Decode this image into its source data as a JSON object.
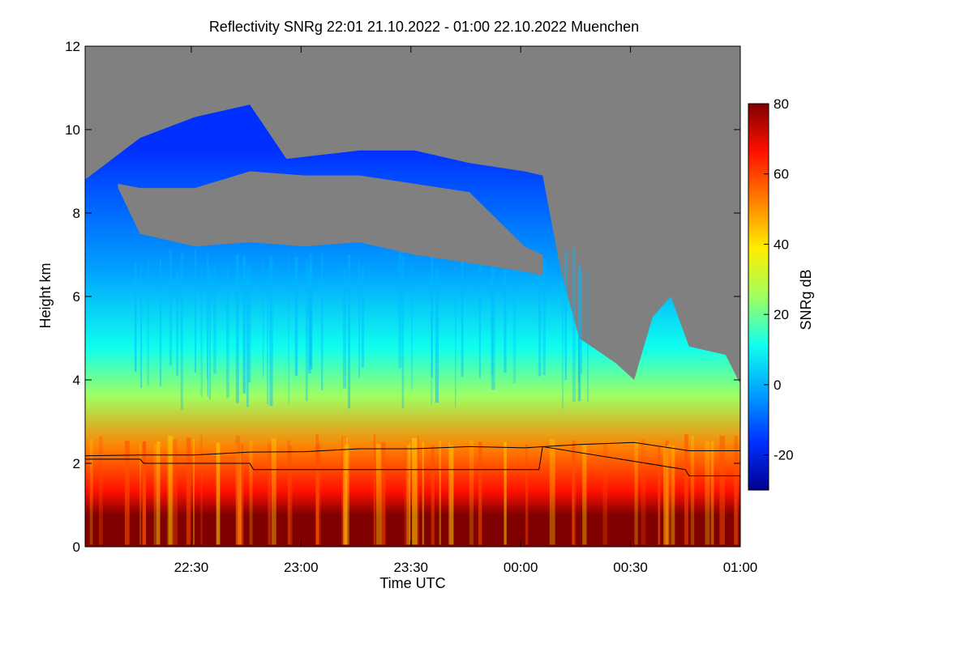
{
  "chart_data": {
    "type": "heatmap",
    "title": "Reflectivity SNRg   22:01 21.10.2022 - 01:00 22.10.2022 Muenchen",
    "xlabel": "Time UTC",
    "ylabel": "Height km",
    "xlim": [
      "22:01",
      "01:00"
    ],
    "ylim": [
      0,
      12
    ],
    "x_ticks": [
      "22:30",
      "23:00",
      "23:30",
      "00:00",
      "00:30",
      "01:00"
    ],
    "y_ticks": [
      "0",
      "2",
      "4",
      "6",
      "8",
      "10",
      "12"
    ],
    "colorbar": {
      "label": "SNRg dB",
      "range": [
        -30,
        80
      ],
      "ticks": [
        "-20",
        "0",
        "20",
        "40",
        "60",
        "80"
      ],
      "colormap": [
        "#00008f",
        "#0030ff",
        "#00a0ff",
        "#10ffee",
        "#a0ff60",
        "#ffee00",
        "#ff8000",
        "#ff1000",
        "#800000"
      ]
    },
    "no_signal_color": "#808080",
    "series": [
      {
        "x": [
          "22:01",
          "22:16",
          "22:31",
          "22:46",
          "23:01",
          "23:16",
          "23:31",
          "23:46",
          "00:01",
          "00:16",
          "00:31",
          "00:46",
          "01:00"
        ],
        "y": [
          2.18,
          2.2,
          2.2,
          2.27,
          2.28,
          2.35,
          2.35,
          2.4,
          2.37,
          2.45,
          2.5,
          2.3,
          2.3
        ]
      },
      {
        "x": [
          "22:01",
          "22:16",
          "22:17",
          "22:46",
          "22:47",
          "00:05",
          "00:06",
          "00:45",
          "00:46",
          "01:00"
        ],
        "y": [
          2.1,
          2.1,
          2.0,
          2.0,
          1.85,
          1.85,
          2.4,
          1.85,
          1.7,
          1.7
        ]
      }
    ],
    "regions": {
      "cloud_top_km": [
        [
          "22:01",
          8.8
        ],
        [
          "22:16",
          9.8
        ],
        [
          "22:31",
          10.3
        ],
        [
          "22:46",
          10.6
        ],
        [
          "22:56",
          9.3
        ],
        [
          "23:16",
          9.5
        ],
        [
          "23:31",
          9.5
        ],
        [
          "23:46",
          9.2
        ],
        [
          "00:01",
          9.0
        ],
        [
          "00:06",
          8.9
        ],
        [
          "00:11",
          6.6
        ],
        [
          "00:16",
          5.0
        ],
        [
          "00:26",
          4.4
        ],
        [
          "00:31",
          4.0
        ],
        [
          "00:36",
          5.5
        ],
        [
          "00:41",
          6.0
        ],
        [
          "00:46",
          4.8
        ],
        [
          "00:56",
          4.6
        ],
        [
          "01:00",
          3.9
        ]
      ],
      "gray_gap_km": {
        "from": "22:10",
        "to": "00:06",
        "bottom": [
          [
            "22:10",
            8.6
          ],
          [
            "22:16",
            7.5
          ],
          [
            "22:31",
            7.2
          ],
          [
            "22:46",
            7.3
          ],
          [
            "23:01",
            7.2
          ],
          [
            "23:16",
            7.3
          ],
          [
            "23:31",
            7.0
          ],
          [
            "23:46",
            6.8
          ],
          [
            "00:01",
            6.6
          ],
          [
            "00:06",
            6.5
          ]
        ],
        "top": [
          [
            "22:10",
            8.7
          ],
          [
            "22:16",
            8.6
          ],
          [
            "22:31",
            8.6
          ],
          [
            "22:46",
            9.0
          ],
          [
            "23:01",
            8.9
          ],
          [
            "23:16",
            8.9
          ],
          [
            "23:31",
            8.7
          ],
          [
            "23:46",
            8.5
          ],
          [
            "00:01",
            7.2
          ],
          [
            "00:06",
            7.0
          ]
        ]
      }
    }
  }
}
